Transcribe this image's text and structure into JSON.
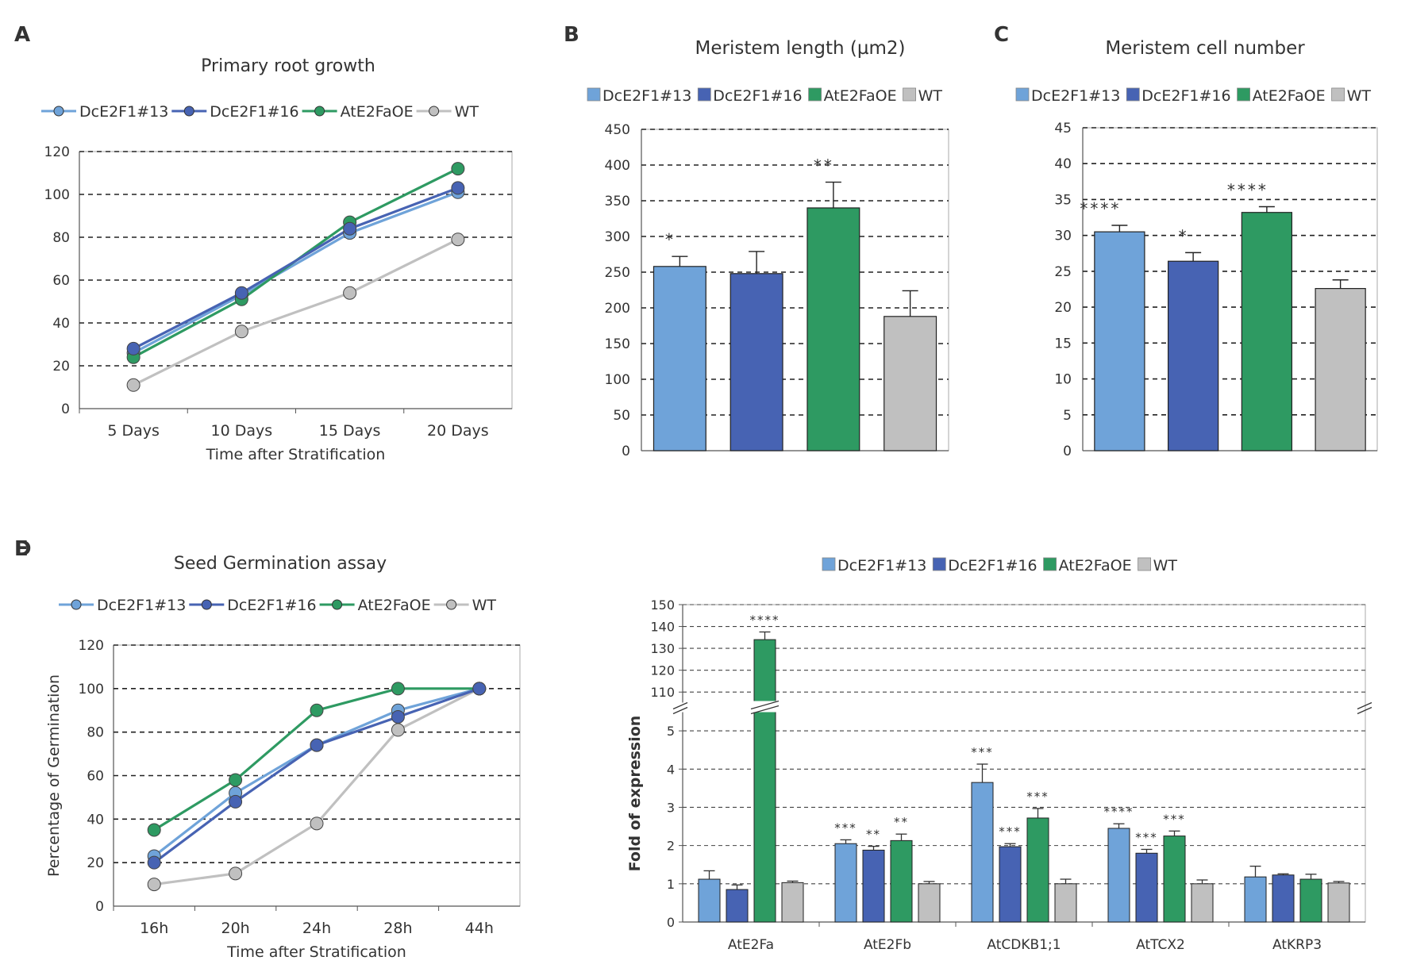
{
  "colors": {
    "DcE2F1#13": "#6fa3d9",
    "DcE2F1#16": "#4763b3",
    "AtE2FaOE": "#2e9a62",
    "WT": "#c0c0c0"
  },
  "series_order": [
    "DcE2F1#13",
    "DcE2F1#16",
    "AtE2FaOE",
    "WT"
  ],
  "chart_data": [
    {
      "id": "A",
      "panel_label": "A",
      "type": "line",
      "title": "Primary root growth",
      "xlabel": "Time after Stratification",
      "ylabel": "",
      "categories": [
        "5 Days",
        "10 Days",
        "15 Days",
        "20 Days"
      ],
      "ylim": [
        0,
        120
      ],
      "yticks": [
        0,
        20,
        40,
        60,
        80,
        100,
        120
      ],
      "series": [
        {
          "name": "DcE2F1#13",
          "values": [
            26,
            53,
            82,
            101
          ]
        },
        {
          "name": "DcE2F1#16",
          "values": [
            28,
            54,
            84,
            103
          ]
        },
        {
          "name": "AtE2FaOE",
          "values": [
            24,
            51,
            87,
            112
          ]
        },
        {
          "name": "WT",
          "values": [
            11,
            36,
            54,
            79
          ]
        }
      ]
    },
    {
      "id": "B",
      "panel_label": "B",
      "type": "bar",
      "title": "Meristem length (µm2)",
      "xlabel": "",
      "ylabel": "",
      "categories": [
        "DcE2F1#13",
        "DcE2F1#16",
        "AtE2FaOE",
        "WT"
      ],
      "values": [
        258,
        248,
        340,
        188
      ],
      "errors": [
        14,
        31,
        36,
        36
      ],
      "significance": [
        "*",
        "",
        "**",
        ""
      ],
      "ylim": [
        0,
        450
      ],
      "yticks": [
        0,
        50,
        100,
        150,
        200,
        250,
        300,
        350,
        400,
        450
      ]
    },
    {
      "id": "C",
      "panel_label": "C",
      "type": "bar",
      "title": "Meristem cell number",
      "xlabel": "",
      "ylabel": "",
      "categories": [
        "DcE2F1#13",
        "DcE2F1#16",
        "AtE2FaOE",
        "WT"
      ],
      "values": [
        30.5,
        26.4,
        33.2,
        22.6
      ],
      "errors": [
        0.9,
        1.2,
        0.8,
        1.2
      ],
      "significance": [
        "****",
        "*",
        "****",
        ""
      ],
      "ylim": [
        0,
        45
      ],
      "yticks": [
        0,
        5,
        10,
        15,
        20,
        25,
        30,
        35,
        40,
        45
      ]
    },
    {
      "id": "D",
      "panel_label": "D",
      "type": "line",
      "title": "Seed Germination assay",
      "xlabel": "Time after Stratification",
      "ylabel": "Percentage of Germination",
      "categories": [
        "16h",
        "20h",
        "24h",
        "28h",
        "44h"
      ],
      "ylim": [
        0,
        120
      ],
      "yticks": [
        0,
        20,
        40,
        60,
        80,
        100,
        120
      ],
      "series": [
        {
          "name": "DcE2F1#13",
          "values": [
            23,
            52,
            74,
            90,
            100
          ]
        },
        {
          "name": "DcE2F1#16",
          "values": [
            20,
            48,
            74,
            87,
            100
          ]
        },
        {
          "name": "AtE2FaOE",
          "values": [
            35,
            58,
            90,
            100,
            100
          ]
        },
        {
          "name": "WT",
          "values": [
            10,
            15,
            38,
            81,
            100
          ]
        }
      ]
    },
    {
      "id": "E",
      "panel_label": "E",
      "type": "bar",
      "title": "",
      "xlabel": "",
      "ylabel": "Fold of expression",
      "categories": [
        "AtE2Fa",
        "AtE2Fb",
        "AtCDKB1;1",
        "AtTCX2",
        "AtKRP3"
      ],
      "series": [
        {
          "name": "DcE2F1#13",
          "values": [
            1.12,
            2.05,
            3.65,
            2.45,
            1.18
          ],
          "errors": [
            0.22,
            0.1,
            0.48,
            0.12,
            0.28
          ],
          "significance": [
            "",
            "***",
            "***",
            "****",
            ""
          ]
        },
        {
          "name": "DcE2F1#16",
          "values": [
            0.85,
            1.88,
            1.97,
            1.8,
            1.23
          ],
          "errors": [
            0.12,
            0.1,
            0.08,
            0.1,
            0.03
          ],
          "significance": [
            "",
            "**",
            "***",
            "***",
            ""
          ]
        },
        {
          "name": "AtE2FaOE",
          "values": [
            134,
            2.13,
            2.72,
            2.25,
            1.12
          ],
          "errors": [
            3.5,
            0.17,
            0.25,
            0.13,
            0.13
          ],
          "significance": [
            "****",
            "**",
            "***",
            "***",
            ""
          ]
        },
        {
          "name": "WT",
          "values": [
            1.03,
            1.0,
            1.0,
            1.0,
            1.02
          ],
          "errors": [
            0.04,
            0.06,
            0.12,
            0.1,
            0.04
          ],
          "significance": [
            "",
            "",
            "",
            "",
            ""
          ]
        }
      ],
      "ylim_lower": [
        0,
        5.5
      ],
      "yticks_lower": [
        0,
        1,
        2,
        3,
        4,
        5
      ],
      "ylim_upper": [
        105,
        150
      ],
      "yticks_upper": [
        110,
        120,
        130,
        140,
        150
      ]
    }
  ]
}
